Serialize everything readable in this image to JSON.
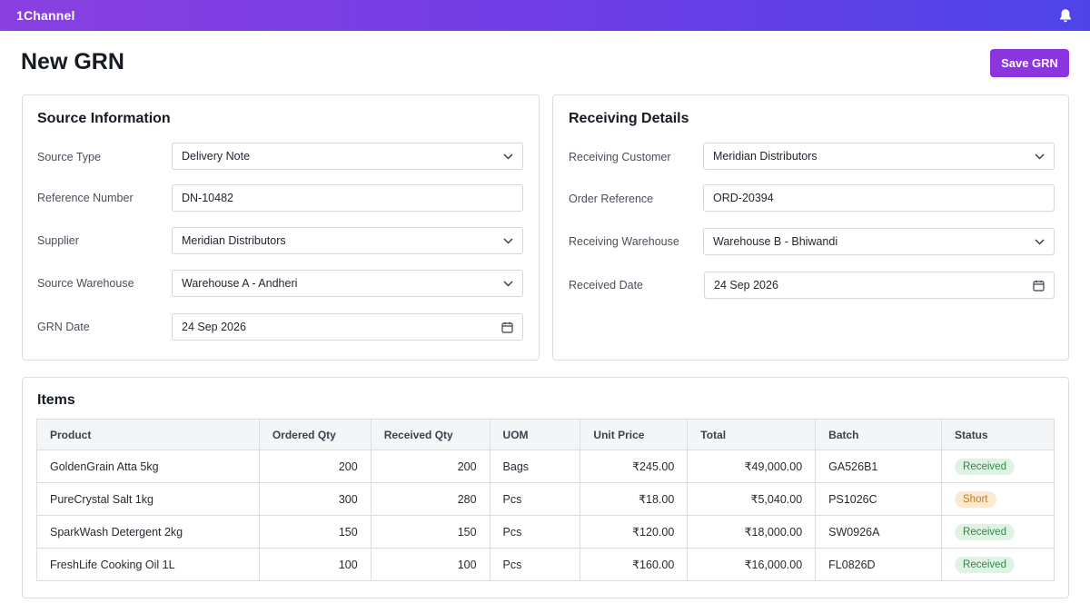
{
  "app": {
    "name": "1Channel"
  },
  "page": {
    "title": "New GRN",
    "save_label": "Save GRN"
  },
  "source": {
    "title": "Source Information",
    "fields": [
      {
        "label": "Source Type",
        "value": "Delivery Note",
        "kind": "select"
      },
      {
        "label": "Reference Number",
        "value": "DN-10482",
        "kind": "text"
      },
      {
        "label": "Supplier",
        "value": "Meridian Distributors",
        "kind": "select"
      },
      {
        "label": "Source Warehouse",
        "value": "Warehouse A - Andheri",
        "kind": "select"
      },
      {
        "label": "GRN Date",
        "value": "24 Sep 2026",
        "kind": "date"
      }
    ]
  },
  "receiving": {
    "title": "Receiving Details",
    "fields": [
      {
        "label": "Receiving Customer",
        "value": "Meridian Distributors",
        "kind": "select"
      },
      {
        "label": "Order Reference",
        "value": "ORD-20394",
        "kind": "text"
      },
      {
        "label": "Receiving Warehouse",
        "value": "Warehouse B - Bhiwandi",
        "kind": "select"
      },
      {
        "label": "Received Date",
        "value": "24 Sep 2026",
        "kind": "date"
      }
    ]
  },
  "items": {
    "title": "Items",
    "columns": [
      "Product",
      "Ordered Qty",
      "Received Qty",
      "UOM",
      "Unit Price",
      "Total",
      "Batch",
      "Status"
    ],
    "rows": [
      {
        "product": "GoldenGrain Atta 5kg",
        "ordered": "200",
        "received": "200",
        "uom": "Bags",
        "price": "₹245.00",
        "total": "₹49,000.00",
        "batch": "GA526B1",
        "status": "Received"
      },
      {
        "product": "PureCrystal Salt 1kg",
        "ordered": "300",
        "received": "280",
        "uom": "Pcs",
        "price": "₹18.00",
        "total": "₹5,040.00",
        "batch": "PS1026C",
        "status": "Short"
      },
      {
        "product": "SparkWash Detergent 2kg",
        "ordered": "150",
        "received": "150",
        "uom": "Pcs",
        "price": "₹120.00",
        "total": "₹18,000.00",
        "batch": "SW0926A",
        "status": "Received"
      },
      {
        "product": "FreshLife Cooking Oil 1L",
        "ordered": "100",
        "received": "100",
        "uom": "Pcs",
        "price": "₹160.00",
        "total": "₹16,000.00",
        "batch": "FL0826D",
        "status": "Received"
      }
    ]
  },
  "colors": {
    "accent": "#8b35dc",
    "received": "#2e8a45",
    "short": "#c67a16"
  },
  "icons": {
    "notifications": "bell-icon",
    "select": "chevron-down-icon",
    "date": "calendar-icon"
  }
}
